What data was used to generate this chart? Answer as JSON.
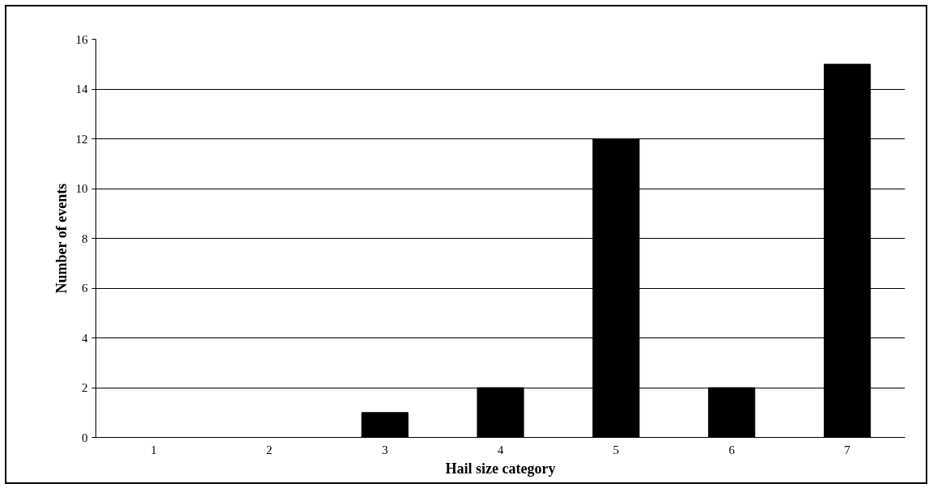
{
  "chart_data": {
    "type": "bar",
    "xlabel": "Hail size category",
    "ylabel": "Number of events",
    "categories": [
      "1",
      "2",
      "3",
      "4",
      "5",
      "6",
      "7"
    ],
    "values": [
      0,
      0,
      1,
      2,
      12,
      2,
      15
    ],
    "color": "#000000",
    "ylim": [
      0,
      16
    ],
    "yticks": [
      0,
      2,
      4,
      6,
      8,
      10,
      12,
      14,
      16
    ],
    "grid": "y"
  }
}
